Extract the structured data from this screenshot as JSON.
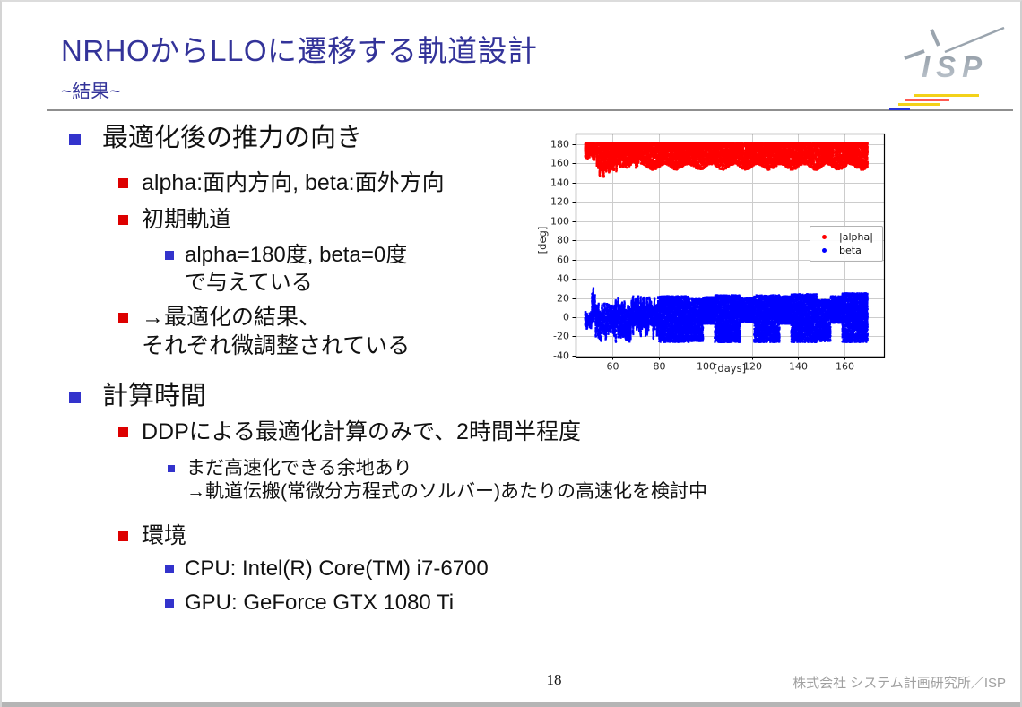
{
  "slide": {
    "title": "NRHOからLLOに遷移する軌道設計",
    "subtitle": "~結果~",
    "page_number": "18",
    "footer_company": "株式会社 システム計画研究所／ISP"
  },
  "logo": {
    "text": "ISP",
    "mark": "isp-rays-icon"
  },
  "colors": {
    "title": "#333399",
    "bullet_level1": "#3333cc",
    "bullet_level2": "#dd0000",
    "bullet_level3": "#3333cc",
    "alpha_red": "#ff0000",
    "beta_blue": "#0000ff"
  },
  "content": {
    "lines": [
      {
        "level": 1,
        "text": "最適化後の推力の向き"
      },
      {
        "level": 2,
        "text": "alpha:面内方向, beta:面外方向"
      },
      {
        "level": 2,
        "text": "初期軌道"
      },
      {
        "level": 3,
        "text": "alpha=180度, beta=0度"
      },
      {
        "level": 3,
        "text": "で与えている",
        "continuation": true
      },
      {
        "level": 2,
        "text": "→最適化の結果、"
      },
      {
        "level": 2,
        "text": "それぞれ微調整されている",
        "continuation": true
      },
      {
        "level": 1,
        "text": "計算時間"
      },
      {
        "level": 2,
        "text": "DDPによる最適化計算のみで、2時間半程度"
      },
      {
        "level": 3,
        "text": "まだ高速化できる余地あり"
      },
      {
        "level": 3,
        "text": "→軌道伝搬(常微分方程式のソルバー)あたりの高速化を検討中",
        "continuation": true
      },
      {
        "level": 2,
        "text": "環境"
      },
      {
        "level": 3,
        "text": "CPU: Intel(R) Core(TM) i7-6700"
      },
      {
        "level": 3,
        "text": "GPU: GeForce GTX 1080 Ti"
      }
    ]
  },
  "chart_data": {
    "type": "scatter",
    "title": "",
    "xlabel": "[days]",
    "ylabel": "[deg]",
    "xlim": [
      44,
      177
    ],
    "ylim": [
      -41,
      191
    ],
    "xticks": [
      60,
      80,
      100,
      120,
      140,
      160
    ],
    "yticks": [
      -40,
      -20,
      0,
      20,
      40,
      60,
      80,
      100,
      120,
      140,
      160,
      180
    ],
    "grid": true,
    "legend": {
      "position": "center-right",
      "items": [
        {
          "label": "|alpha|",
          "color": "#ff0000"
        },
        {
          "label": "beta",
          "color": "#0000ff"
        }
      ]
    },
    "series": [
      {
        "name": "|alpha|",
        "color": "#ff0000",
        "summary": "in-plane thrust angle magnitude stays near 180 deg; initial transient dips to ~145 deg around day 53-57, then band 156-181 deg with scalloped lower edge until day 170",
        "bands": [
          {
            "x0": 48,
            "x1": 53,
            "ymin": 163,
            "ymax": 181,
            "mode": "streaks",
            "n": 500,
            "cap": true
          },
          {
            "x0": 53,
            "x1": 57,
            "ymin": 145,
            "ymax": 181,
            "mode": "streaks",
            "n": 450,
            "cap": true
          },
          {
            "x0": 57,
            "x1": 63,
            "ymin": 150,
            "ymax": 181,
            "mode": "streaks",
            "n": 700,
            "cap": true
          },
          {
            "x0": 63,
            "x1": 72,
            "ymin": 154,
            "ymax": 181,
            "mode": "streaks",
            "n": 1000,
            "cap": true
          },
          {
            "x0": 72,
            "x1": 170,
            "ymin": 156,
            "ymax": 181,
            "mode": "fill",
            "n": 9000,
            "cap": true,
            "wave": {
              "amp": 3,
              "period": 10
            }
          }
        ]
      },
      {
        "name": "beta",
        "color": "#0000ff",
        "summary": "out-of-plane thrust angle oscillates around 0 deg, spike to ~+36 deg near day 52, then dense band roughly -26..+24 deg with periodic notches until day 170",
        "bands": [
          {
            "x0": 48,
            "x1": 51,
            "ymin": -13,
            "ymax": 6,
            "mode": "streaks",
            "n": 220
          },
          {
            "x0": 51,
            "x1": 52.5,
            "ymin": -8,
            "ymax": 36,
            "mode": "streaks",
            "n": 200
          },
          {
            "x0": 52.5,
            "x1": 60,
            "ymin": -26,
            "ymax": 16,
            "mode": "streaks",
            "n": 800
          },
          {
            "x0": 60,
            "x1": 68,
            "ymin": -28,
            "ymax": 21,
            "mode": "streaks",
            "n": 1000
          },
          {
            "x0": 68,
            "x1": 80,
            "ymin": -23,
            "ymax": 23,
            "mode": "streaks",
            "n": 1500
          },
          {
            "x0": 80,
            "x1": 93,
            "ymin": -26,
            "ymax": 22,
            "mode": "fill",
            "n": 2400
          },
          {
            "x0": 93,
            "x1": 99,
            "ymin": -25,
            "ymax": 19,
            "mode": "fill",
            "n": 1000
          },
          {
            "x0": 99,
            "x1": 104,
            "ymin": -7,
            "ymax": 21,
            "mode": "fill",
            "n": 750
          },
          {
            "x0": 104,
            "x1": 115,
            "ymin": -26,
            "ymax": 23,
            "mode": "fill",
            "n": 2000
          },
          {
            "x0": 115,
            "x1": 121,
            "ymin": -5,
            "ymax": 20,
            "mode": "fill",
            "n": 750
          },
          {
            "x0": 121,
            "x1": 132,
            "ymin": -26,
            "ymax": 23,
            "mode": "fill",
            "n": 2000
          },
          {
            "x0": 132,
            "x1": 137,
            "ymin": -7,
            "ymax": 22,
            "mode": "fill",
            "n": 700
          },
          {
            "x0": 137,
            "x1": 148,
            "ymin": -26,
            "ymax": 24,
            "mode": "fill",
            "n": 2000
          },
          {
            "x0": 148,
            "x1": 154,
            "ymin": -25,
            "ymax": 18,
            "mode": "fill",
            "n": 900
          },
          {
            "x0": 154,
            "x1": 159,
            "ymin": -6,
            "ymax": 22,
            "mode": "fill",
            "n": 700
          },
          {
            "x0": 159,
            "x1": 170,
            "ymin": -26,
            "ymax": 25,
            "mode": "fill",
            "n": 2000
          }
        ]
      }
    ]
  }
}
